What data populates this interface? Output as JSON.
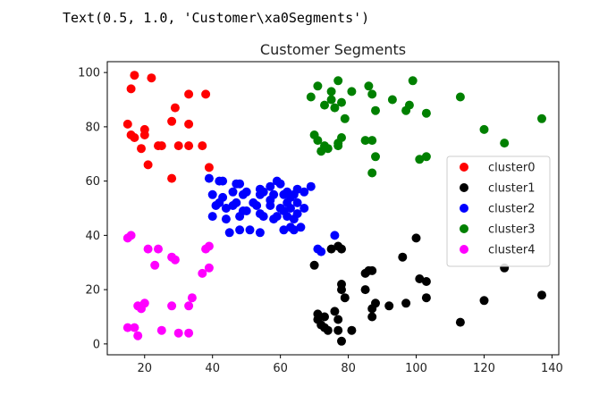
{
  "output_text": "Text(0.5, 1.0, 'Customer\\xa0Segments')",
  "chart_data": {
    "type": "scatter",
    "title": "Customer Segments",
    "xlabel": "",
    "ylabel": "",
    "xlim": [
      9,
      142
    ],
    "ylim": [
      -4,
      104
    ],
    "xticks": [
      20,
      40,
      60,
      80,
      100,
      120,
      140
    ],
    "yticks": [
      0,
      20,
      40,
      60,
      80,
      100
    ],
    "grid": false,
    "legend": "center-right",
    "series": [
      {
        "name": "cluster0",
        "color": "#ff0000",
        "points": [
          [
            17,
            99
          ],
          [
            16,
            94
          ],
          [
            22,
            98
          ],
          [
            15,
            81
          ],
          [
            16,
            77
          ],
          [
            17,
            76
          ],
          [
            20,
            79
          ],
          [
            20,
            77
          ],
          [
            19,
            72
          ],
          [
            24,
            73
          ],
          [
            25,
            73
          ],
          [
            21,
            66
          ],
          [
            28,
            82
          ],
          [
            29,
            87
          ],
          [
            33,
            92
          ],
          [
            38,
            92
          ],
          [
            33,
            81
          ],
          [
            30,
            73
          ],
          [
            33,
            73
          ],
          [
            37,
            73
          ],
          [
            28,
            61
          ],
          [
            39,
            65
          ]
        ]
      },
      {
        "name": "cluster1",
        "color": "#000000",
        "points": [
          [
            70,
            29
          ],
          [
            75,
            35
          ],
          [
            77,
            36
          ],
          [
            78,
            35
          ],
          [
            78,
            22
          ],
          [
            78,
            20
          ],
          [
            79,
            17
          ],
          [
            85,
            26
          ],
          [
            86,
            27
          ],
          [
            87,
            27
          ],
          [
            85,
            20
          ],
          [
            87,
            13
          ],
          [
            88,
            15
          ],
          [
            87,
            10
          ],
          [
            92,
            14
          ],
          [
            96,
            32
          ],
          [
            97,
            15
          ],
          [
            100,
            39
          ],
          [
            101,
            24
          ],
          [
            103,
            23
          ],
          [
            103,
            17
          ],
          [
            113,
            8
          ],
          [
            120,
            16
          ],
          [
            126,
            28
          ],
          [
            137,
            18
          ],
          [
            71,
            11
          ],
          [
            71,
            9
          ],
          [
            72,
            7
          ],
          [
            73,
            6
          ],
          [
            73,
            10
          ],
          [
            74,
            5
          ],
          [
            76,
            12
          ],
          [
            77,
            9
          ],
          [
            77,
            5
          ],
          [
            78,
            1
          ],
          [
            81,
            5
          ]
        ]
      },
      {
        "name": "cluster2",
        "color": "#0000ff",
        "points": [
          [
            39,
            61
          ],
          [
            40,
            55
          ],
          [
            40,
            47
          ],
          [
            41,
            51
          ],
          [
            42,
            52
          ],
          [
            42,
            60
          ],
          [
            43,
            60
          ],
          [
            43,
            54
          ],
          [
            44,
            50
          ],
          [
            44,
            46
          ],
          [
            45,
            41
          ],
          [
            46,
            51
          ],
          [
            46,
            56
          ],
          [
            47,
            52
          ],
          [
            47,
            59
          ],
          [
            48,
            47
          ],
          [
            48,
            59
          ],
          [
            48,
            42
          ],
          [
            49,
            49
          ],
          [
            49,
            55
          ],
          [
            50,
            56
          ],
          [
            50,
            49
          ],
          [
            51,
            42
          ],
          [
            52,
            52
          ],
          [
            53,
            51
          ],
          [
            54,
            55
          ],
          [
            54,
            57
          ],
          [
            54,
            41
          ],
          [
            54,
            48
          ],
          [
            55,
            47
          ],
          [
            55,
            56
          ],
          [
            57,
            53
          ],
          [
            57,
            51
          ],
          [
            57,
            58
          ],
          [
            58,
            46
          ],
          [
            58,
            55
          ],
          [
            59,
            60
          ],
          [
            59,
            47
          ],
          [
            60,
            59
          ],
          [
            60,
            50
          ],
          [
            61,
            42
          ],
          [
            61,
            55
          ],
          [
            61,
            49
          ],
          [
            62,
            56
          ],
          [
            62,
            47
          ],
          [
            62,
            52
          ],
          [
            63,
            50
          ],
          [
            63,
            43
          ],
          [
            63,
            54
          ],
          [
            64,
            46
          ],
          [
            64,
            42
          ],
          [
            64,
            55
          ],
          [
            65,
            48
          ],
          [
            65,
            52
          ],
          [
            65,
            57
          ],
          [
            66,
            43
          ],
          [
            67,
            56
          ],
          [
            67,
            50
          ],
          [
            69,
            58
          ],
          [
            71,
            35
          ],
          [
            72,
            34
          ],
          [
            76,
            40
          ]
        ]
      },
      {
        "name": "cluster3",
        "color": "#008000",
        "points": [
          [
            69,
            91
          ],
          [
            70,
            77
          ],
          [
            71,
            95
          ],
          [
            71,
            75
          ],
          [
            72,
            71
          ],
          [
            73,
            88
          ],
          [
            73,
            73
          ],
          [
            74,
            72
          ],
          [
            75,
            93
          ],
          [
            75,
            90
          ],
          [
            76,
            87
          ],
          [
            77,
            97
          ],
          [
            77,
            74
          ],
          [
            77,
            73
          ],
          [
            78,
            76
          ],
          [
            78,
            89
          ],
          [
            79,
            83
          ],
          [
            81,
            93
          ],
          [
            85,
            75
          ],
          [
            86,
            95
          ],
          [
            87,
            75
          ],
          [
            87,
            63
          ],
          [
            87,
            92
          ],
          [
            88,
            86
          ],
          [
            88,
            69
          ],
          [
            93,
            90
          ],
          [
            97,
            86
          ],
          [
            98,
            88
          ],
          [
            99,
            97
          ],
          [
            101,
            68
          ],
          [
            103,
            69
          ],
          [
            103,
            85
          ],
          [
            113,
            91
          ],
          [
            120,
            79
          ],
          [
            126,
            74
          ],
          [
            137,
            83
          ]
        ]
      },
      {
        "name": "cluster4",
        "color": "#ff00ff",
        "points": [
          [
            15,
            39
          ],
          [
            15,
            6
          ],
          [
            16,
            40
          ],
          [
            17,
            6
          ],
          [
            18,
            3
          ],
          [
            18,
            14
          ],
          [
            19,
            13
          ],
          [
            20,
            15
          ],
          [
            21,
            35
          ],
          [
            23,
            29
          ],
          [
            24,
            35
          ],
          [
            25,
            5
          ],
          [
            28,
            14
          ],
          [
            28,
            32
          ],
          [
            29,
            31
          ],
          [
            30,
            4
          ],
          [
            33,
            4
          ],
          [
            33,
            14
          ],
          [
            34,
            17
          ],
          [
            37,
            26
          ],
          [
            38,
            35
          ],
          [
            39,
            36
          ],
          [
            39,
            28
          ]
        ]
      }
    ]
  }
}
